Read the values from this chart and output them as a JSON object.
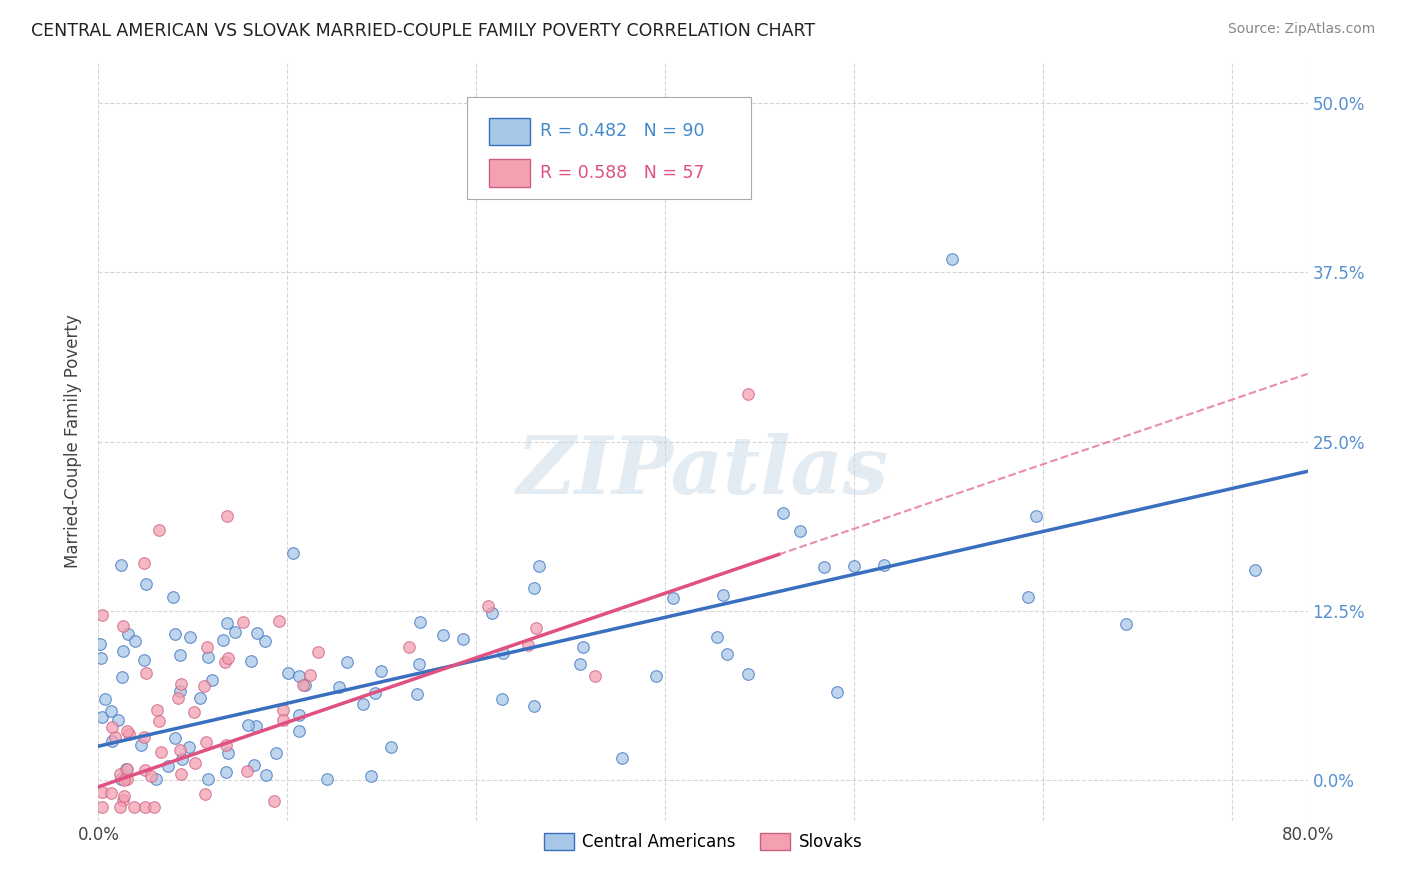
{
  "title": "CENTRAL AMERICAN VS SLOVAK MARRIED-COUPLE FAMILY POVERTY CORRELATION CHART",
  "source": "Source: ZipAtlas.com",
  "ylabel_label": "Married-Couple Family Poverty",
  "legend_labels": [
    "Central Americans",
    "Slovaks"
  ],
  "blue_R": 0.482,
  "blue_N": 90,
  "pink_R": 0.588,
  "pink_N": 57,
  "blue_color": "#a8c8e8",
  "pink_color": "#f4a0b0",
  "blue_line_color": "#3a6fbf",
  "pink_line_color": "#e05080",
  "xlim": [
    0.0,
    0.8
  ],
  "ylim": [
    -0.03,
    0.53
  ],
  "watermark": "ZIPatlas",
  "background_color": "#ffffff",
  "grid_color": "#cccccc",
  "blue_line_start_y": 0.025,
  "blue_line_end_y": 0.228,
  "pink_line_start_y": -0.005,
  "pink_line_end_y": 0.3
}
